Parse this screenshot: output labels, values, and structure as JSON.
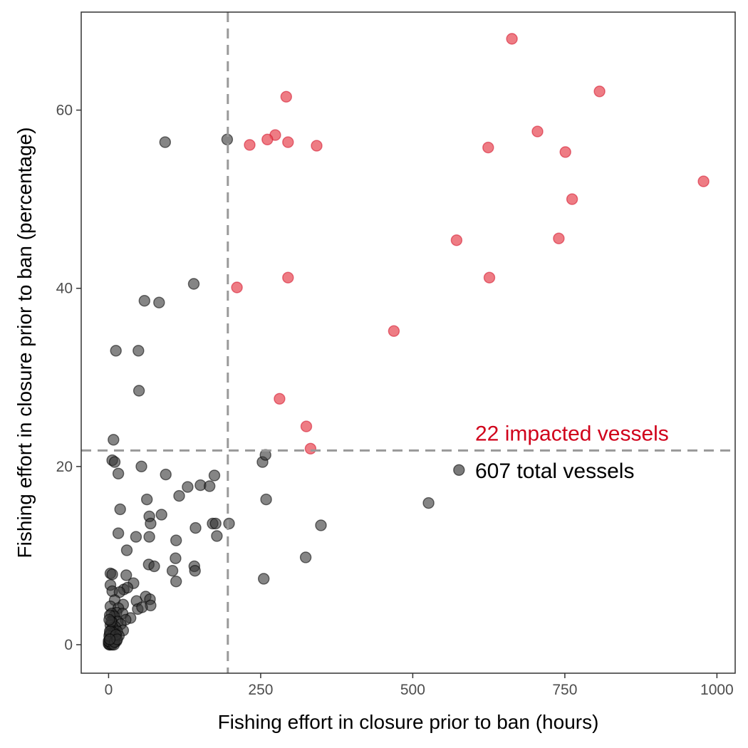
{
  "chart_data": {
    "type": "scatter",
    "title": "",
    "xlabel": "Fishing effort in closure prior to ban (hours)",
    "ylabel": "Fishing effort in closure prior to ban (percentage)",
    "xlim": [
      -45,
      1030
    ],
    "ylim": [
      -3.2,
      71
    ],
    "x_ticks": [
      0,
      250,
      500,
      750,
      1000
    ],
    "y_ticks": [
      0,
      20,
      40,
      60
    ],
    "x_tick_labels": [
      "0",
      "250",
      "500",
      "750",
      "1000"
    ],
    "y_tick_labels": [
      "0",
      "20",
      "40",
      "60"
    ],
    "grid": false,
    "threshold_lines": {
      "x": 196,
      "y": 21.8
    },
    "annotations": [
      {
        "text": "22 impacted vessels",
        "color": "#d0021b"
      },
      {
        "text": "607 total vessels",
        "color": "#000000"
      }
    ],
    "legend_points": [
      {
        "x": 576,
        "y": 19.6,
        "color": "#4d4d4d"
      }
    ],
    "colors": {
      "impacted": "#e8505b",
      "total": "#333333",
      "threshold_line": "#999999"
    },
    "series": [
      {
        "name": "impacted",
        "points": [
          [
            663,
            68.0
          ],
          [
            807,
            62.1
          ],
          [
            292,
            61.5
          ],
          [
            705,
            57.6
          ],
          [
            274,
            57.2
          ],
          [
            261,
            56.7
          ],
          [
            295,
            56.4
          ],
          [
            232,
            56.1
          ],
          [
            342,
            56.0
          ],
          [
            624,
            55.8
          ],
          [
            751,
            55.3
          ],
          [
            978,
            52.0
          ],
          [
            762,
            50.0
          ],
          [
            572,
            45.4
          ],
          [
            740,
            45.6
          ],
          [
            295,
            41.2
          ],
          [
            626,
            41.2
          ],
          [
            211,
            40.1
          ],
          [
            469,
            35.2
          ],
          [
            281,
            27.6
          ],
          [
            325,
            24.5
          ],
          [
            332,
            22.0
          ]
        ]
      },
      {
        "name": "total",
        "points": [
          [
            93,
            56.4
          ],
          [
            195,
            56.7
          ],
          [
            140,
            40.5
          ],
          [
            59,
            38.6
          ],
          [
            83,
            38.4
          ],
          [
            12,
            33.0
          ],
          [
            49,
            33.0
          ],
          [
            50,
            28.5
          ],
          [
            8,
            23.0
          ],
          [
            6,
            20.7
          ],
          [
            10,
            20.5
          ],
          [
            54,
            20.0
          ],
          [
            16,
            19.2
          ],
          [
            94,
            19.1
          ],
          [
            174,
            19.0
          ],
          [
            151,
            17.9
          ],
          [
            166,
            17.8
          ],
          [
            130,
            17.7
          ],
          [
            116,
            16.7
          ],
          [
            63,
            16.3
          ],
          [
            259,
            16.3
          ],
          [
            253,
            20.5
          ],
          [
            258,
            21.3
          ],
          [
            526,
            15.9
          ],
          [
            19,
            15.2
          ],
          [
            67,
            14.4
          ],
          [
            87,
            14.6
          ],
          [
            69,
            13.6
          ],
          [
            171,
            13.6
          ],
          [
            176,
            13.6
          ],
          [
            198,
            13.6
          ],
          [
            143,
            13.1
          ],
          [
            349,
            13.4
          ],
          [
            16,
            12.5
          ],
          [
            45,
            12.1
          ],
          [
            67,
            12.1
          ],
          [
            178,
            12.2
          ],
          [
            111,
            11.7
          ],
          [
            30,
            10.6
          ],
          [
            324,
            9.8
          ],
          [
            110,
            9.7
          ],
          [
            66,
            9.0
          ],
          [
            75,
            8.8
          ],
          [
            141,
            8.8
          ],
          [
            105,
            8.3
          ],
          [
            142,
            8.3
          ],
          [
            3,
            8.0
          ],
          [
            6,
            7.9
          ],
          [
            29,
            7.8
          ],
          [
            255,
            7.4
          ],
          [
            111,
            7.1
          ],
          [
            41,
            6.9
          ],
          [
            3,
            6.7
          ],
          [
            25,
            6.2
          ],
          [
            31,
            6.4
          ],
          [
            6,
            6.0
          ],
          [
            18,
            5.9
          ],
          [
            61,
            5.4
          ],
          [
            68,
            5.1
          ],
          [
            10,
            5.0
          ],
          [
            46,
            4.9
          ],
          [
            24,
            4.5
          ],
          [
            69,
            4.4
          ],
          [
            3,
            4.3
          ],
          [
            16,
            4.1
          ],
          [
            48,
            4.0
          ],
          [
            55,
            4.2
          ],
          [
            13,
            3.6
          ],
          [
            23,
            3.5
          ],
          [
            36,
            3.0
          ],
          [
            5,
            3.5
          ],
          [
            9,
            3.2
          ],
          [
            2,
            3.3
          ],
          [
            28,
            2.8
          ],
          [
            15,
            2.6
          ],
          [
            6,
            2.5
          ],
          [
            20,
            2.3
          ],
          [
            3,
            2.2
          ],
          [
            11,
            2.0
          ],
          [
            7,
            1.9
          ],
          [
            24,
            1.6
          ],
          [
            14,
            1.5
          ],
          [
            4,
            1.6
          ],
          [
            9,
            1.3
          ],
          [
            2,
            1.2
          ],
          [
            17,
            1.0
          ],
          [
            5,
            0.9
          ],
          [
            11,
            0.8
          ],
          [
            3,
            0.7
          ],
          [
            7,
            0.6
          ],
          [
            1,
            0.5
          ],
          [
            13,
            0.4
          ],
          [
            4,
            0.3
          ],
          [
            2,
            0.2
          ],
          [
            8,
            0.2
          ],
          [
            0,
            0.1
          ],
          [
            1,
            0.0
          ],
          [
            3,
            0.0
          ],
          [
            5,
            0.1
          ],
          [
            6,
            0.0
          ],
          [
            0,
            0.4
          ],
          [
            1,
            1.0
          ],
          [
            2,
            1.5
          ],
          [
            4,
            2.6
          ],
          [
            1,
            2.8
          ],
          [
            9,
            0.0
          ],
          [
            10,
            0.3
          ],
          [
            12,
            1.1
          ],
          [
            14,
            0.6
          ],
          [
            2,
            0.6
          ]
        ]
      }
    ]
  }
}
